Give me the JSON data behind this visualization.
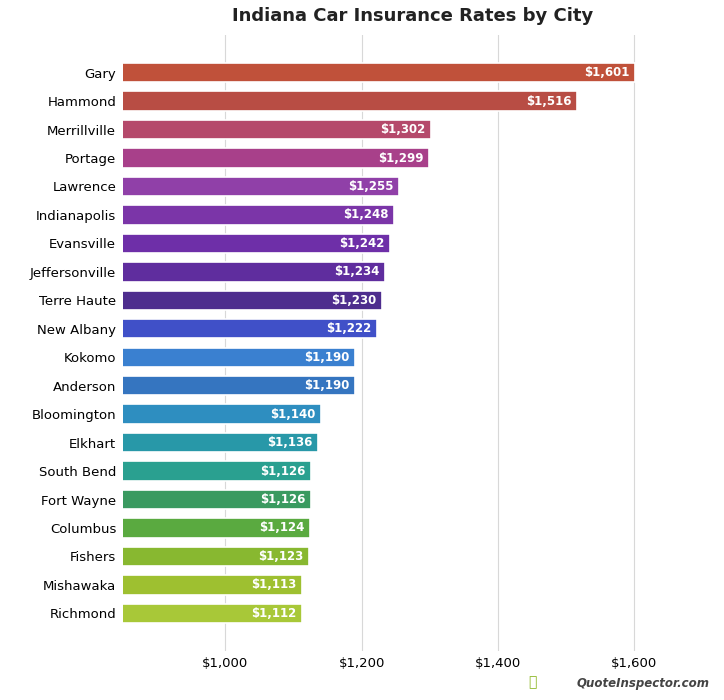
{
  "title": "Indiana Car Insurance Rates by City",
  "cities": [
    "Gary",
    "Hammond",
    "Merrillville",
    "Portage",
    "Lawrence",
    "Indianapolis",
    "Evansville",
    "Jeffersonville",
    "Terre Haute",
    "New Albany",
    "Kokomo",
    "Anderson",
    "Bloomington",
    "Elkhart",
    "South Bend",
    "Fort Wayne",
    "Columbus",
    "Fishers",
    "Mishawaka",
    "Richmond"
  ],
  "values": [
    1601,
    1516,
    1302,
    1299,
    1255,
    1248,
    1242,
    1234,
    1230,
    1222,
    1190,
    1190,
    1140,
    1136,
    1126,
    1126,
    1124,
    1123,
    1113,
    1112
  ],
  "bar_colors": [
    "#c0513a",
    "#b84d44",
    "#b5496b",
    "#a8408a",
    "#9040a8",
    "#7b35a8",
    "#6e2fa8",
    "#5f2d9e",
    "#4e2d8e",
    "#4050c8",
    "#3a80d0",
    "#3575c0",
    "#2e8ec0",
    "#2898a8",
    "#2aa090",
    "#3a9a60",
    "#5aaa40",
    "#88b830",
    "#9ec030",
    "#a8c838"
  ],
  "xlim": [
    850,
    1700
  ],
  "xticks": [
    1000,
    1200,
    1400,
    1600
  ],
  "background_color": "#ffffff",
  "grid_color": "#d8d8d8",
  "title_fontsize": 13,
  "bar_label_fontsize": 8.5,
  "ylabel_fontsize": 10,
  "xlabel_fontsize": 10
}
